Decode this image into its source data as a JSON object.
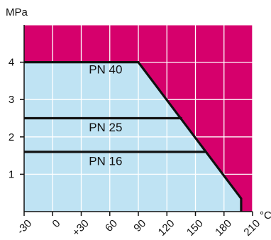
{
  "chart_data": {
    "type": "area",
    "ylabel": "MPa",
    "xlabel": "°C",
    "xlim": [
      -30,
      210
    ],
    "ylim": [
      0,
      5
    ],
    "x_ticks": [
      -30,
      0,
      30,
      60,
      90,
      120,
      150,
      180,
      210
    ],
    "x_tick_labels": [
      "-30",
      "0",
      "+30",
      "60",
      "90",
      "120",
      "150",
      "180",
      "210"
    ],
    "y_ticks": [
      1,
      2,
      3,
      4
    ],
    "y_tick_labels": [
      "1",
      "2",
      "3",
      "4"
    ],
    "grid": true,
    "colors": {
      "background": "#d6006c",
      "region": "#bfe3f3",
      "grid": "#ffffff",
      "line": "#111111"
    },
    "envelope": {
      "x": [
        -30,
        90,
        198,
        198
      ],
      "y": [
        4,
        4,
        0.35,
        0
      ]
    },
    "series": [
      {
        "name": "PN 40",
        "x": [
          -30,
          90,
          198,
          198
        ],
        "y": [
          4,
          4,
          0.35,
          0
        ]
      },
      {
        "name": "PN 25",
        "x": [
          -30,
          136
        ],
        "y": [
          2.5,
          2.5
        ]
      },
      {
        "name": "PN 16",
        "x": [
          -30,
          161
        ],
        "y": [
          1.6,
          1.6
        ]
      }
    ],
    "series_label_positions": [
      {
        "name": "PN 40",
        "x": 38,
        "y": 3.7
      },
      {
        "name": "PN 25",
        "x": 38,
        "y": 2.15
      },
      {
        "name": "PN 16",
        "x": 38,
        "y": 1.25
      }
    ]
  }
}
